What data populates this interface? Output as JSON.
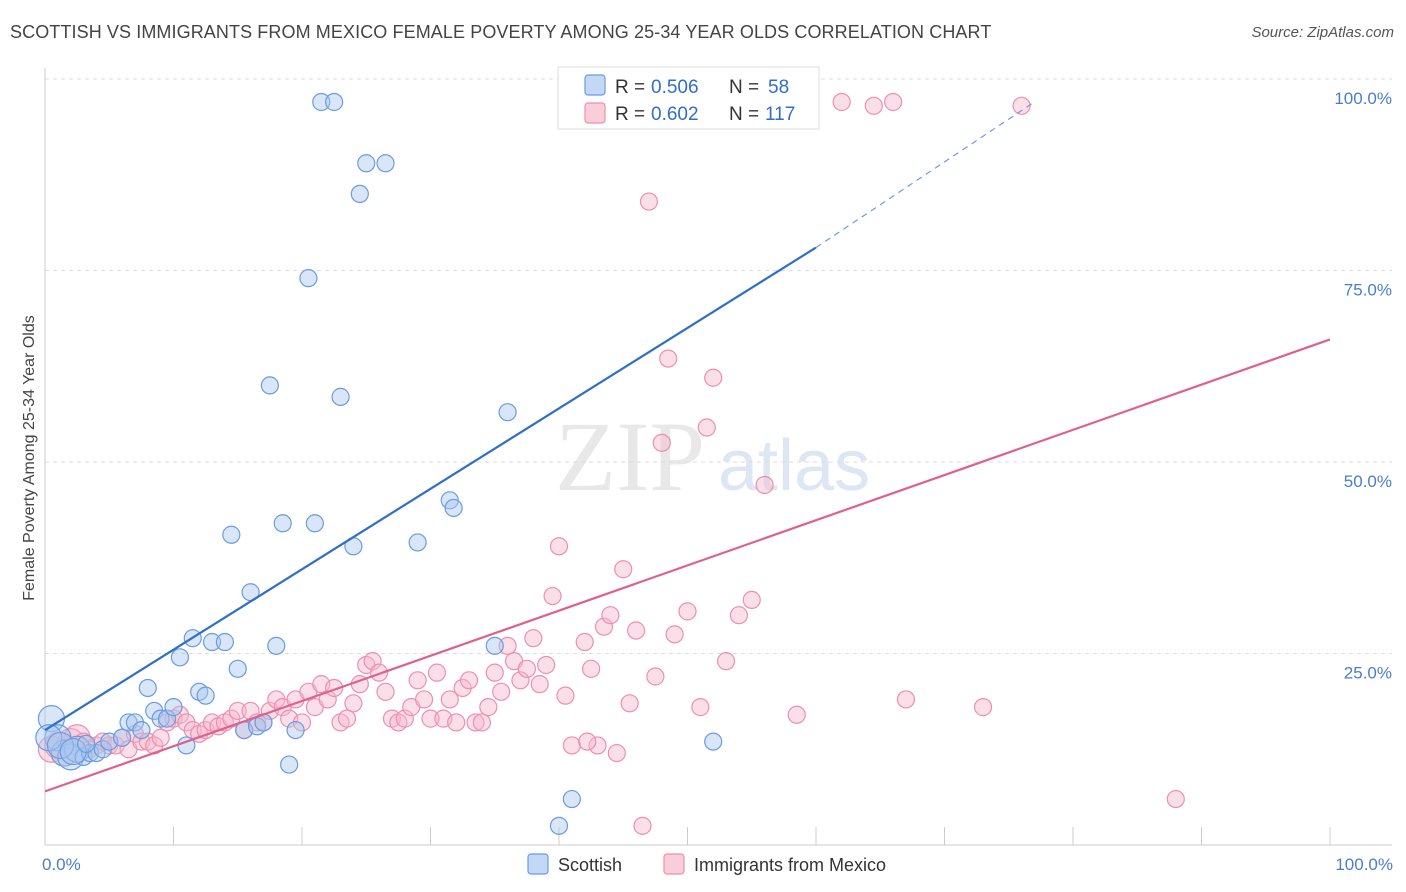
{
  "title": "SCOTTISH VS IMMIGRANTS FROM MEXICO FEMALE POVERTY AMONG 25-34 YEAR OLDS CORRELATION CHART",
  "source": "Source: ZipAtlas.com",
  "watermark": {
    "zip": "ZIP",
    "atlas": "atlas"
  },
  "colors": {
    "scottish_fill": "#a9c8f0",
    "scottish_stroke": "#6b9be0",
    "scottish_line": "#2f6fc7",
    "mexico_fill": "#f6b8cb",
    "mexico_stroke": "#ee8fae",
    "mexico_line": "#e0608c",
    "tick_label": "#4a7ec8",
    "grid": "#dddddd"
  },
  "legend": {
    "rows": [
      {
        "r_label": "R =",
        "r_value": "0.506",
        "n_label": "N =",
        "n_value": "58"
      },
      {
        "r_label": "R =",
        "r_value": "0.602",
        "n_label": "N =",
        "n_value": "117"
      }
    ]
  },
  "bottom_legend": [
    "Scottish",
    "Immigrants from Mexico"
  ],
  "chart_data": {
    "type": "scatter",
    "xlabel": "",
    "ylabel": "Female Poverty Among 25-34 Year Olds",
    "xlim": [
      0,
      100
    ],
    "ylim": [
      0,
      100
    ],
    "x_tick_labels": [
      {
        "value": 0,
        "label": "0.0%"
      },
      {
        "value": 100,
        "label": "100.0%"
      }
    ],
    "y_tick_labels": [
      {
        "value": 25,
        "label": "25.0%"
      },
      {
        "value": 50,
        "label": "50.0%"
      },
      {
        "value": 75,
        "label": "75.0%"
      },
      {
        "value": 100,
        "label": "100.0%"
      }
    ],
    "grid": "horizontal dashed",
    "legend_position": "top-center",
    "series": [
      {
        "name": "Scottish",
        "R": 0.506,
        "N": 58,
        "trend": {
          "x0": 0,
          "y0": 15,
          "x1": 60,
          "y1": 78,
          "dashed_to_x": 77,
          "dashed_to_y": 97
        },
        "points": [
          [
            0.5,
            16.5
          ],
          [
            1,
            14
          ],
          [
            1.5,
            12
          ],
          [
            2,
            11.5
          ],
          [
            2.5,
            12.5
          ],
          [
            3,
            11.5
          ],
          [
            3.5,
            12
          ],
          [
            4,
            12
          ],
          [
            4.5,
            12.5
          ],
          [
            5,
            13.5
          ],
          [
            6,
            14
          ],
          [
            6.5,
            16
          ],
          [
            7,
            16
          ],
          [
            7.5,
            15
          ],
          [
            8,
            20.5
          ],
          [
            8.5,
            17.5
          ],
          [
            9,
            16.5
          ],
          [
            9.5,
            16.5
          ],
          [
            10,
            18
          ],
          [
            10.5,
            24.5
          ],
          [
            11,
            13
          ],
          [
            11.5,
            27
          ],
          [
            12,
            20
          ],
          [
            12.5,
            19.5
          ],
          [
            13,
            26.5
          ],
          [
            14,
            26.5
          ],
          [
            14.5,
            40.5
          ],
          [
            15,
            23
          ],
          [
            15.5,
            15
          ],
          [
            16,
            33
          ],
          [
            16.5,
            15.5
          ],
          [
            17,
            16
          ],
          [
            17.5,
            60
          ],
          [
            18,
            26
          ],
          [
            18.5,
            42
          ],
          [
            19,
            10.5
          ],
          [
            19.5,
            15
          ],
          [
            20.5,
            74
          ],
          [
            21,
            42
          ],
          [
            21.5,
            97
          ],
          [
            22.5,
            97
          ],
          [
            23,
            58.5
          ],
          [
            24,
            39
          ],
          [
            24.5,
            85
          ],
          [
            25,
            89
          ],
          [
            26.5,
            89
          ],
          [
            29,
            39.5
          ],
          [
            31.5,
            45
          ],
          [
            31.8,
            44
          ],
          [
            35,
            26
          ],
          [
            36,
            56.5
          ],
          [
            40,
            2.5
          ],
          [
            41,
            6
          ],
          [
            52,
            13.5
          ],
          [
            0.3,
            14
          ],
          [
            1.2,
            13
          ],
          [
            2.2,
            12.2
          ],
          [
            3.2,
            13.2
          ]
        ]
      },
      {
        "name": "Immigrants from Mexico",
        "R": 0.602,
        "N": 117,
        "trend": {
          "x0": 0,
          "y0": 7,
          "x1": 100,
          "y1": 66
        },
        "points": [
          [
            0.5,
            12.5
          ],
          [
            1,
            13
          ],
          [
            1.5,
            12
          ],
          [
            2,
            13.5
          ],
          [
            2.5,
            14
          ],
          [
            3,
            13.5
          ],
          [
            3.5,
            12.5
          ],
          [
            4,
            13
          ],
          [
            4.5,
            13.5
          ],
          [
            5,
            13
          ],
          [
            5.5,
            13
          ],
          [
            6,
            14
          ],
          [
            6.5,
            12.5
          ],
          [
            7,
            14.5
          ],
          [
            7.5,
            13.5
          ],
          [
            8,
            13.5
          ],
          [
            8.5,
            13
          ],
          [
            9,
            14
          ],
          [
            9.5,
            16
          ],
          [
            10,
            16.5
          ],
          [
            10.5,
            17
          ],
          [
            11,
            16
          ],
          [
            11.5,
            15
          ],
          [
            12,
            14.5
          ],
          [
            12.5,
            15
          ],
          [
            13,
            16
          ],
          [
            13.5,
            15.5
          ],
          [
            14,
            16
          ],
          [
            14.5,
            16.5
          ],
          [
            15,
            17.5
          ],
          [
            15.5,
            15
          ],
          [
            16,
            17.5
          ],
          [
            16.5,
            16
          ],
          [
            17,
            16
          ],
          [
            17.5,
            17.5
          ],
          [
            18,
            19
          ],
          [
            18.5,
            18
          ],
          [
            19,
            16.5
          ],
          [
            19.5,
            19
          ],
          [
            20,
            16
          ],
          [
            20.5,
            20
          ],
          [
            21,
            18
          ],
          [
            21.5,
            21
          ],
          [
            22,
            19
          ],
          [
            22.5,
            20.5
          ],
          [
            23,
            16
          ],
          [
            23.5,
            16.5
          ],
          [
            24,
            18.5
          ],
          [
            24.5,
            21
          ],
          [
            25,
            23.5
          ],
          [
            25.5,
            24
          ],
          [
            26,
            22.5
          ],
          [
            26.5,
            20
          ],
          [
            27,
            16.5
          ],
          [
            27.5,
            16
          ],
          [
            28,
            16.5
          ],
          [
            28.5,
            18
          ],
          [
            29,
            21.5
          ],
          [
            29.5,
            19
          ],
          [
            30,
            16.5
          ],
          [
            30.5,
            22.5
          ],
          [
            31,
            16.5
          ],
          [
            31.5,
            19
          ],
          [
            32,
            16
          ],
          [
            32.5,
            20.5
          ],
          [
            33,
            21.5
          ],
          [
            33.5,
            16
          ],
          [
            34,
            16
          ],
          [
            34.5,
            18
          ],
          [
            35,
            22.5
          ],
          [
            35.5,
            20
          ],
          [
            36,
            26
          ],
          [
            36.5,
            24
          ],
          [
            37,
            21.5
          ],
          [
            37.5,
            23
          ],
          [
            38,
            27
          ],
          [
            38.5,
            21
          ],
          [
            39,
            23.5
          ],
          [
            39.5,
            32.5
          ],
          [
            40,
            39
          ],
          [
            40.5,
            19.5
          ],
          [
            41,
            13
          ],
          [
            42,
            26.5
          ],
          [
            42.5,
            23
          ],
          [
            43,
            13
          ],
          [
            43.5,
            28.5
          ],
          [
            44,
            30
          ],
          [
            44.5,
            12
          ],
          [
            45,
            36
          ],
          [
            45.5,
            18.5
          ],
          [
            46,
            28
          ],
          [
            46.5,
            2.5
          ],
          [
            47,
            84
          ],
          [
            47.5,
            22
          ],
          [
            48,
            52.5
          ],
          [
            48.5,
            63.5
          ],
          [
            49,
            27.5
          ],
          [
            50,
            30.5
          ],
          [
            51,
            18
          ],
          [
            51.5,
            54.5
          ],
          [
            52,
            61
          ],
          [
            53,
            24
          ],
          [
            54,
            30
          ],
          [
            55,
            32
          ],
          [
            55.5,
            96
          ],
          [
            56,
            47
          ],
          [
            58,
            97
          ],
          [
            62,
            97
          ],
          [
            64.5,
            96.5
          ],
          [
            66,
            97
          ],
          [
            67,
            19
          ],
          [
            73,
            18
          ],
          [
            76,
            96.5
          ],
          [
            88,
            6
          ],
          [
            58.5,
            17
          ],
          [
            42.2,
            13.5
          ]
        ]
      }
    ]
  }
}
